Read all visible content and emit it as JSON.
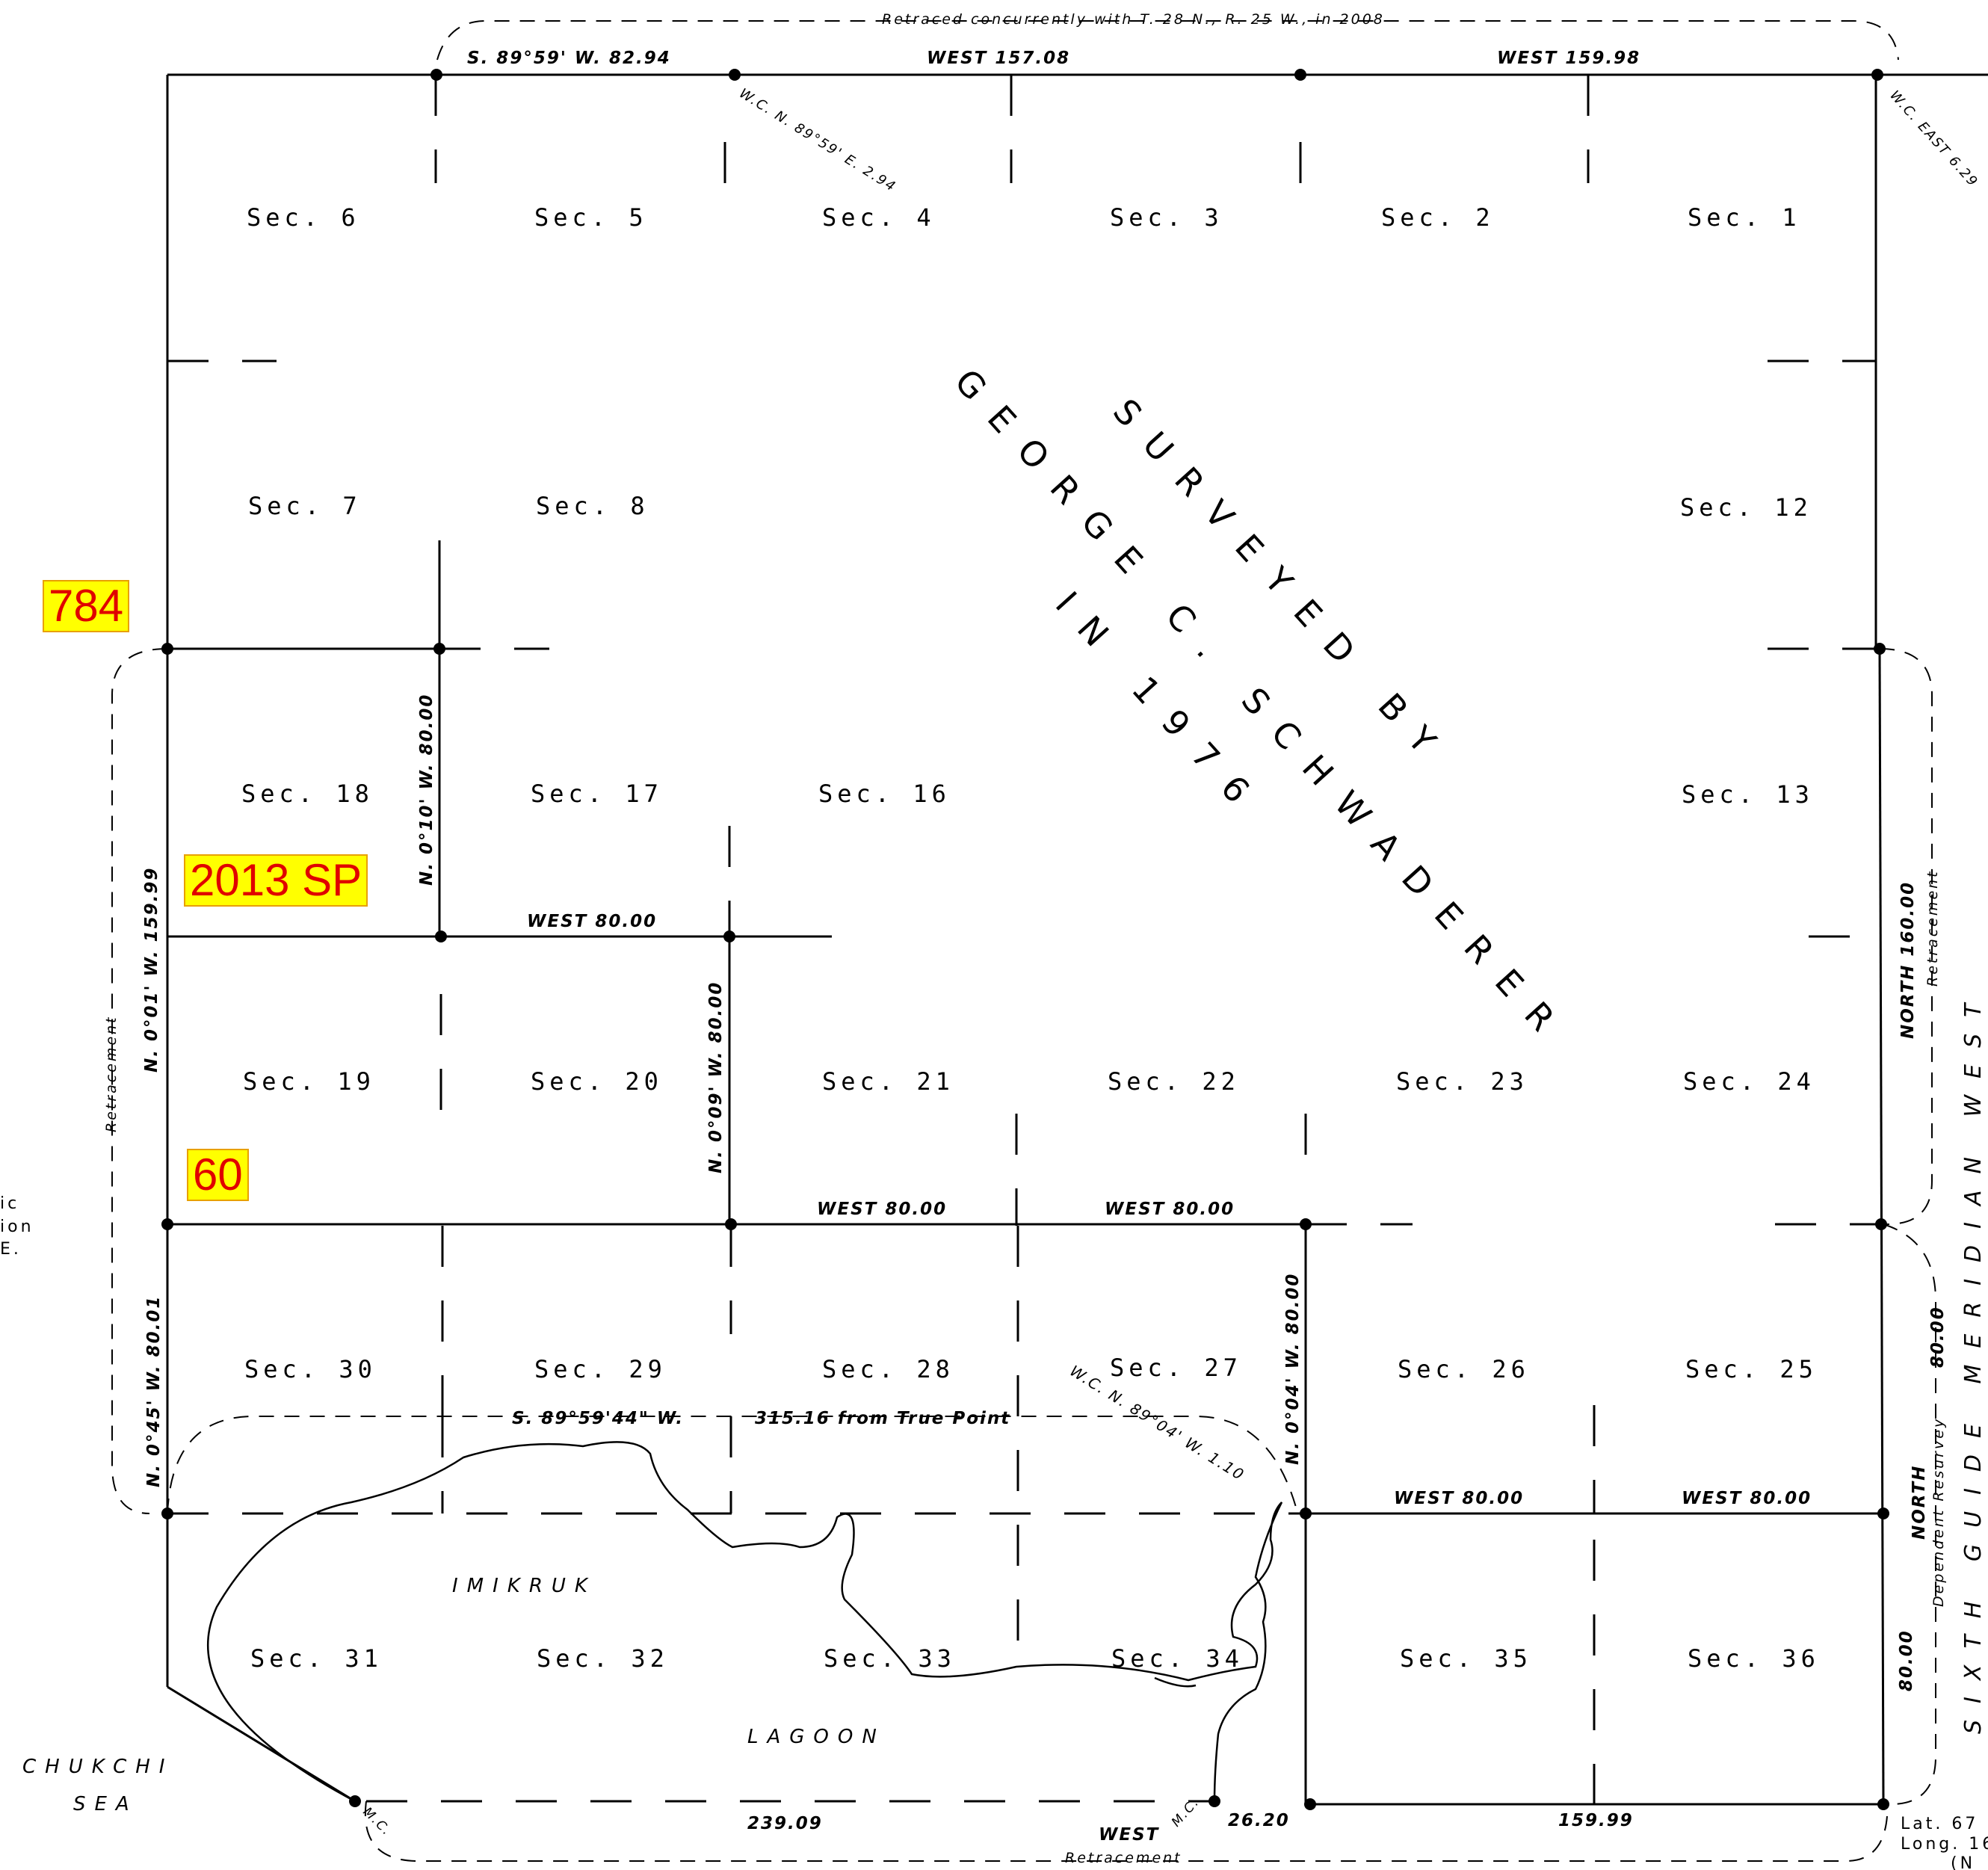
{
  "sections": [
    {
      "label": "Sec. 6"
    },
    {
      "label": "Sec. 5"
    },
    {
      "label": "Sec. 4"
    },
    {
      "label": "Sec. 3"
    },
    {
      "label": "Sec. 2"
    },
    {
      "label": "Sec. 1"
    },
    {
      "label": "Sec. 7"
    },
    {
      "label": "Sec. 8"
    },
    {
      "label": "Sec. 12"
    },
    {
      "label": "Sec. 18"
    },
    {
      "label": "Sec. 17"
    },
    {
      "label": "Sec. 16"
    },
    {
      "label": "Sec. 13"
    },
    {
      "label": "Sec. 19"
    },
    {
      "label": "Sec. 20"
    },
    {
      "label": "Sec. 21"
    },
    {
      "label": "Sec. 22"
    },
    {
      "label": "Sec. 23"
    },
    {
      "label": "Sec. 24"
    },
    {
      "label": "Sec. 30"
    },
    {
      "label": "Sec. 29"
    },
    {
      "label": "Sec. 28"
    },
    {
      "label": "Sec. 27"
    },
    {
      "label": "Sec. 26"
    },
    {
      "label": "Sec. 25"
    },
    {
      "label": "Sec. 31"
    },
    {
      "label": "Sec. 32"
    },
    {
      "label": "Sec. 33"
    },
    {
      "label": "Sec. 34"
    },
    {
      "label": "Sec. 35"
    },
    {
      "label": "Sec. 36"
    }
  ],
  "bearings": {
    "top_1": "S. 89°59' W.   82.94",
    "top_2": "WEST    157.08",
    "top_3": "WEST    159.98",
    "wc_top": "W.C. N. 89°59' E. 2.94",
    "wc_top_right": "W.C. EAST 6.29",
    "west_80_a": "WEST  80.00",
    "west_80_b": "WEST  80.00",
    "west_80_c": "WEST  80.00",
    "west_80_d": "WEST  80.00",
    "west_80_e": "WEST  80.00",
    "n_010": "N. 0°10' W.  80.00",
    "n_009": "N. 0°09' W.  80.00",
    "n_004": "N. 0°04' W.  80.00",
    "n_001": "N. 0°01' W.   159.99",
    "n_045": "N. 0°45' W.  80.01",
    "north_160": "NORTH     160.00",
    "north_80_a": "80.00",
    "north_80_b": "NORTH",
    "north_80_c": "80.00",
    "s_8959": "S. 89°59'44\" W.",
    "true_point": "315.16 from True Point",
    "wc_lagoon": "W.C. N. 89°04' W. 1.10",
    "bottom_1": "239.09",
    "bottom_west": "WEST",
    "bottom_2": "26.20",
    "bottom_3": "159.99",
    "mc_1": "M.C.",
    "mc_2": "M.C."
  },
  "notes": {
    "retraced": "Retraced concurrently with T. 28 N., R. 25 W., in 2008",
    "retracement_left": "Retracement",
    "retracement_right": "Retracement",
    "retracement_bottom": "Retracement",
    "dependent_resurvey": "Dependent Resurvey"
  },
  "surveyed": {
    "line1": "SURVEYED BY",
    "line2": "GEORGE C. SCHWADERER",
    "line3": "IN 1976"
  },
  "water": {
    "lagoon_1": "IMIKRUK",
    "lagoon_2": "LAGOON",
    "sea_1": "CHUKCHI",
    "sea_2": "SEA"
  },
  "guide_meridian": "SIXTH GUIDE MERIDIAN WEST",
  "edge_left": [
    "ic",
    "ion",
    "E."
  ],
  "edge_right": [
    "Lat.    67",
    "Long.  16",
    "(N"
  ],
  "markers": {
    "m784": "784",
    "m2013": "2013 SP",
    "m60": "60"
  }
}
